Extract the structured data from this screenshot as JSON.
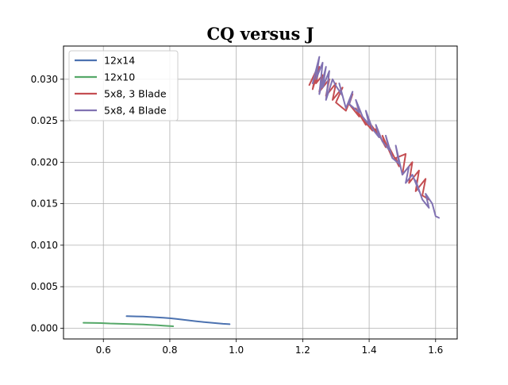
{
  "chart_data": {
    "type": "line",
    "title": "CQ versus J",
    "xlabel": "",
    "ylabel": "",
    "xlim": [
      0.48,
      1.665
    ],
    "ylim": [
      -0.0013,
      0.034
    ],
    "x_ticks": [
      0.6,
      0.8,
      1.0,
      1.2,
      1.4,
      1.6
    ],
    "x_tick_labels": [
      "0.6",
      "0.8",
      "1.0",
      "1.2",
      "1.4",
      "1.6"
    ],
    "y_ticks": [
      0.0,
      0.005,
      0.01,
      0.015,
      0.02,
      0.025,
      0.03
    ],
    "y_tick_labels": [
      "0.000",
      "0.005",
      "0.010",
      "0.015",
      "0.020",
      "0.025",
      "0.030"
    ],
    "grid": true,
    "legend_position": "top-left",
    "series": [
      {
        "name": "12x14",
        "color": "#4c72b0",
        "x": [
          0.67,
          0.7,
          0.72,
          0.74,
          0.76,
          0.78,
          0.8,
          0.82,
          0.84,
          0.86,
          0.88,
          0.9,
          0.92,
          0.94,
          0.96,
          0.98
        ],
        "y": [
          0.00145,
          0.00142,
          0.0014,
          0.00135,
          0.0013,
          0.00125,
          0.0012,
          0.00112,
          0.00102,
          0.00092,
          0.00083,
          0.00075,
          0.00067,
          0.0006,
          0.00053,
          0.00048
        ]
      },
      {
        "name": "12x10",
        "color": "#55a868",
        "x": [
          0.54,
          0.56,
          0.58,
          0.6,
          0.62,
          0.64,
          0.66,
          0.68,
          0.7,
          0.72,
          0.74,
          0.76,
          0.78,
          0.8,
          0.81
        ],
        "y": [
          0.00065,
          0.00063,
          0.00062,
          0.0006,
          0.00057,
          0.00055,
          0.00052,
          0.0005,
          0.00047,
          0.00044,
          0.0004,
          0.00036,
          0.00031,
          0.00026,
          0.00023
        ]
      },
      {
        "name": "5x8, 3 Blade",
        "color": "#c44e52",
        "x": [
          1.22,
          1.24,
          1.23,
          1.25,
          1.24,
          1.26,
          1.25,
          1.28,
          1.27,
          1.3,
          1.29,
          1.32,
          1.3,
          1.33,
          1.35,
          1.34,
          1.37,
          1.36,
          1.39,
          1.38,
          1.41,
          1.4,
          1.43,
          1.42,
          1.45,
          1.44,
          1.47,
          1.46,
          1.49,
          1.48,
          1.51,
          1.5,
          1.53,
          1.52,
          1.55,
          1.54,
          1.57,
          1.56,
          1.58
        ],
        "y": [
          0.0293,
          0.031,
          0.0288,
          0.0315,
          0.0295,
          0.0305,
          0.0285,
          0.03,
          0.028,
          0.0295,
          0.0275,
          0.029,
          0.0272,
          0.0262,
          0.0282,
          0.027,
          0.0255,
          0.0265,
          0.0245,
          0.0252,
          0.0238,
          0.0248,
          0.0232,
          0.024,
          0.0218,
          0.0232,
          0.0205,
          0.0218,
          0.0195,
          0.0205,
          0.021,
          0.0185,
          0.02,
          0.0175,
          0.019,
          0.0165,
          0.018,
          0.016,
          0.0155
        ]
      },
      {
        "name": "5x8, 4 Blade",
        "color": "#8172b2",
        "x": [
          1.23,
          1.25,
          1.24,
          1.26,
          1.25,
          1.27,
          1.26,
          1.28,
          1.27,
          1.29,
          1.3,
          1.32,
          1.31,
          1.33,
          1.35,
          1.34,
          1.37,
          1.36,
          1.38,
          1.4,
          1.39,
          1.41,
          1.43,
          1.42,
          1.44,
          1.46,
          1.45,
          1.47,
          1.49,
          1.48,
          1.5,
          1.52,
          1.51,
          1.53,
          1.55,
          1.54,
          1.56,
          1.58,
          1.57,
          1.59,
          1.6,
          1.61
        ],
        "y": [
          0.0295,
          0.0327,
          0.03,
          0.032,
          0.0282,
          0.0315,
          0.029,
          0.031,
          0.0275,
          0.03,
          0.0292,
          0.028,
          0.0295,
          0.0265,
          0.0285,
          0.027,
          0.026,
          0.0275,
          0.0255,
          0.0245,
          0.0262,
          0.024,
          0.023,
          0.0245,
          0.0225,
          0.0215,
          0.0232,
          0.0205,
          0.0198,
          0.022,
          0.0185,
          0.0195,
          0.0175,
          0.0185,
          0.0165,
          0.0178,
          0.0155,
          0.0145,
          0.0162,
          0.015,
          0.0135,
          0.0133
        ]
      }
    ]
  }
}
